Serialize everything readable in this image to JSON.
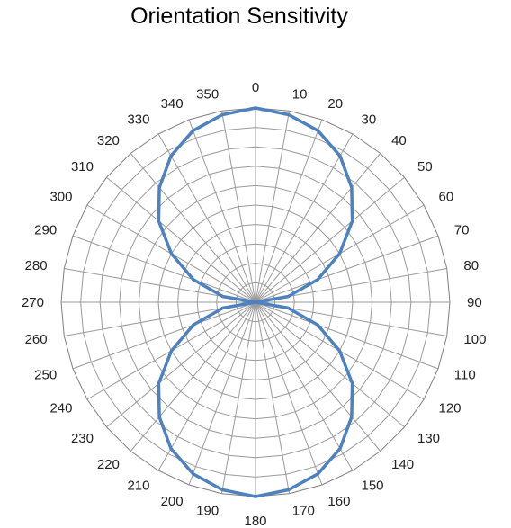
{
  "chart_data": {
    "type": "line",
    "subtype": "radar",
    "title": "Orientation Sensitivity",
    "angle_labels": [
      "0",
      "10",
      "20",
      "30",
      "40",
      "50",
      "60",
      "70",
      "80",
      "90",
      "100",
      "110",
      "120",
      "130",
      "140",
      "150",
      "160",
      "170",
      "180",
      "190",
      "200",
      "210",
      "220",
      "230",
      "240",
      "250",
      "260",
      "270",
      "280",
      "290",
      "300",
      "310",
      "320",
      "330",
      "340",
      "350"
    ],
    "radial_range": [
      0,
      10
    ],
    "radial_ticks": 10,
    "grid": true,
    "series": [
      {
        "color": "#4F81BD",
        "values": [
          10,
          9.8,
          9.4,
          8.7,
          7.7,
          6.5,
          5.0,
          3.4,
          1.7,
          0,
          1.7,
          3.4,
          5.0,
          6.5,
          7.7,
          8.7,
          9.4,
          9.8,
          10,
          9.8,
          9.4,
          8.7,
          7.7,
          6.5,
          5.0,
          3.4,
          1.7,
          0,
          1.7,
          3.4,
          5.0,
          6.5,
          7.7,
          8.7,
          9.4,
          9.8
        ]
      }
    ]
  }
}
